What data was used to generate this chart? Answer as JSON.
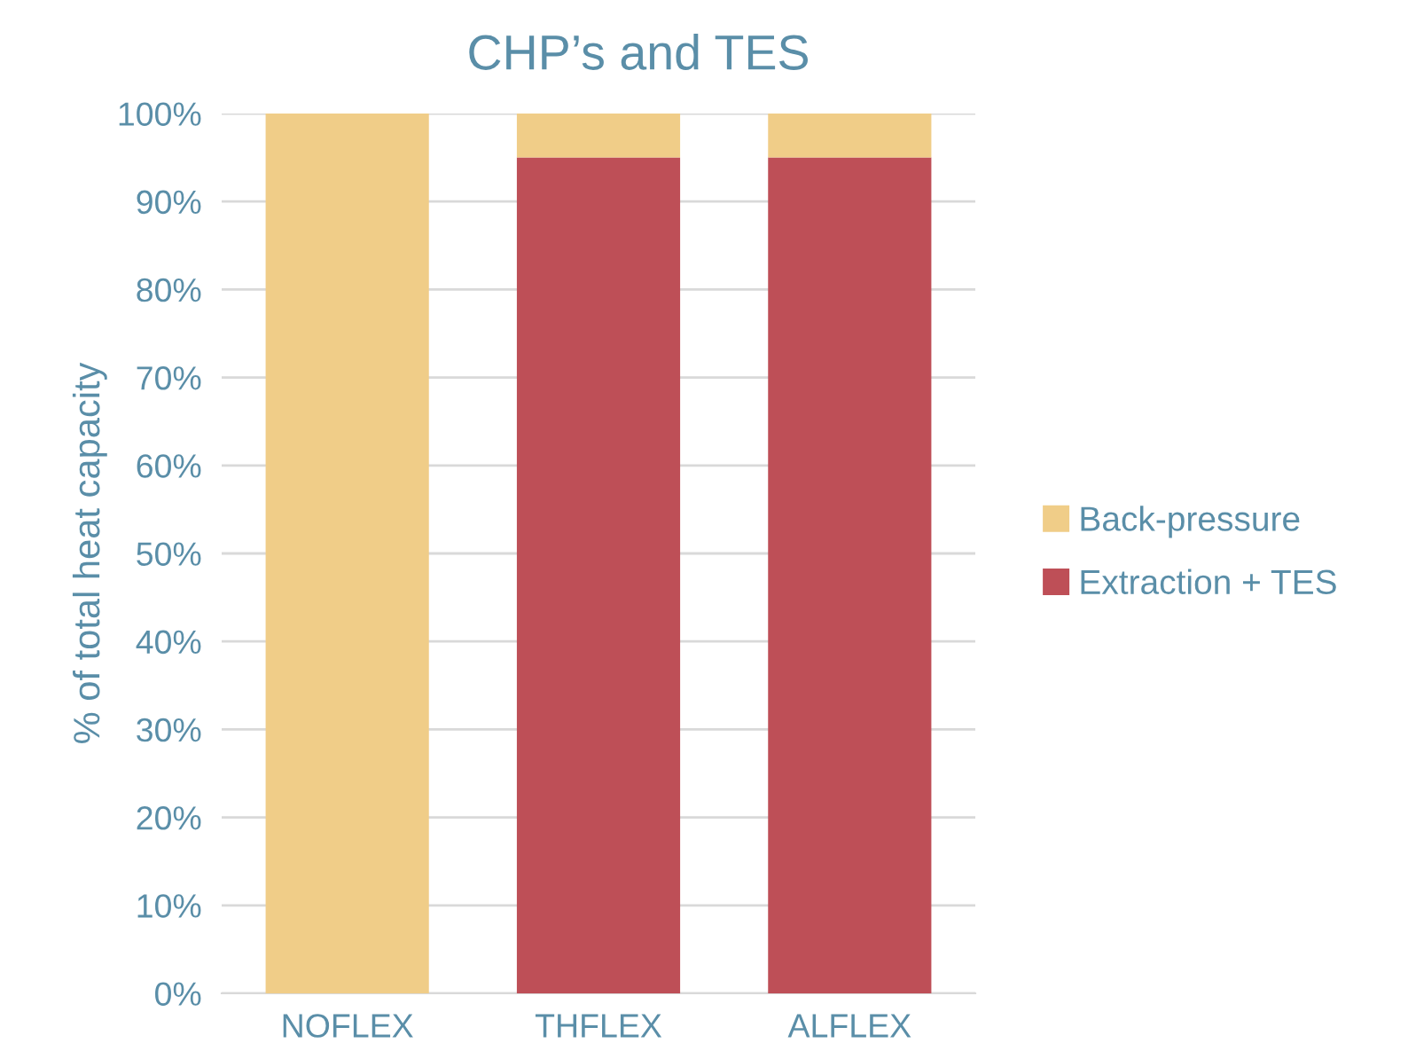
{
  "chart_data": {
    "type": "bar",
    "title": "CHP’s and TES",
    "ylabel": "% of total heat capacity",
    "categories": [
      "NOFLEX",
      "THFLEX",
      "ALFLEX"
    ],
    "stacked": true,
    "series": [
      {
        "name": "Extraction + TES",
        "color": "#be4f57",
        "values": [
          0,
          95,
          95
        ]
      },
      {
        "name": "Back-pressure",
        "color": "#f0cd88",
        "values": [
          100,
          5,
          5
        ]
      }
    ],
    "ylim": [
      0,
      100
    ],
    "yticks": [
      {
        "value": 0,
        "label": "0%"
      },
      {
        "value": 10,
        "label": "10%"
      },
      {
        "value": 20,
        "label": "20%"
      },
      {
        "value": 30,
        "label": "30%"
      },
      {
        "value": 40,
        "label": "40%"
      },
      {
        "value": 50,
        "label": "50%"
      },
      {
        "value": 60,
        "label": "60%"
      },
      {
        "value": 70,
        "label": "70%"
      },
      {
        "value": 80,
        "label": "80%"
      },
      {
        "value": 90,
        "label": "90%"
      },
      {
        "value": 100,
        "label": "100%"
      }
    ],
    "grid": "y",
    "legend": "right"
  }
}
